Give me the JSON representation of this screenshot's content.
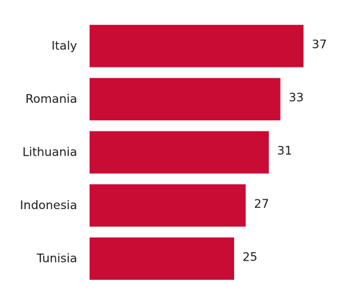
{
  "chart_data": {
    "type": "bar",
    "orientation": "horizontal",
    "categories": [
      "Italy",
      "Romania",
      "Lithuania",
      "Indonesia",
      "Tunisia"
    ],
    "values": [
      37,
      33,
      31,
      27,
      25
    ],
    "color": "#c90c34"
  }
}
